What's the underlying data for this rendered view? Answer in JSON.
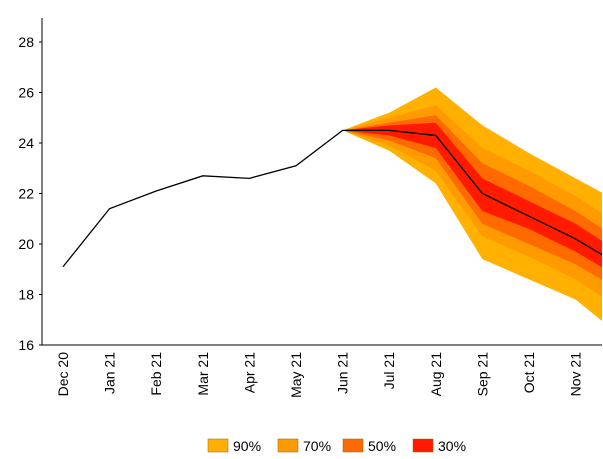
{
  "chart_data": {
    "type": "fan",
    "categories": [
      "Dec 20",
      "Jan 21",
      "Feb 21",
      "Mar 21",
      "Apr 21",
      "May 21",
      "Jun 21",
      "Jul 21",
      "Aug 21",
      "Sep 21",
      "Oct 21",
      "Nov 21",
      null
    ],
    "line": {
      "color": "#000000",
      "values": [
        19.1,
        21.4,
        22.1,
        22.7,
        22.6,
        23.1,
        24.5,
        24.5,
        24.3,
        22.0,
        21.1,
        20.2,
        19.1
      ]
    },
    "bands": [
      {
        "name": "90%",
        "color": "#ffb000",
        "upper": [
          null,
          null,
          null,
          null,
          null,
          null,
          24.5,
          25.2,
          26.2,
          24.7,
          23.6,
          22.6,
          21.6
        ],
        "lower": [
          null,
          null,
          null,
          null,
          null,
          null,
          24.5,
          23.7,
          22.4,
          19.4,
          18.6,
          17.8,
          16.3
        ]
      },
      {
        "name": "70%",
        "color": "#ff9a00",
        "upper": [
          null,
          null,
          null,
          null,
          null,
          null,
          24.5,
          25.0,
          25.5,
          23.8,
          22.9,
          21.9,
          20.7
        ],
        "lower": [
          null,
          null,
          null,
          null,
          null,
          null,
          24.5,
          23.9,
          22.9,
          20.3,
          19.5,
          18.6,
          17.4
        ]
      },
      {
        "name": "50%",
        "color": "#ff6a00",
        "upper": [
          null,
          null,
          null,
          null,
          null,
          null,
          24.5,
          24.8,
          25.1,
          23.2,
          22.3,
          21.3,
          20.1
        ],
        "lower": [
          null,
          null,
          null,
          null,
          null,
          null,
          24.5,
          24.1,
          23.4,
          20.8,
          20.0,
          19.2,
          18.1
        ]
      },
      {
        "name": "30%",
        "color": "#ff1a00",
        "upper": [
          null,
          null,
          null,
          null,
          null,
          null,
          24.5,
          24.7,
          24.8,
          22.6,
          21.7,
          20.8,
          19.6
        ],
        "lower": [
          null,
          null,
          null,
          null,
          null,
          null,
          24.5,
          24.3,
          23.8,
          21.3,
          20.6,
          19.7,
          18.6
        ]
      }
    ],
    "ylim": [
      16,
      28
    ],
    "yticks": [
      16,
      18,
      20,
      22,
      24,
      26,
      28
    ],
    "grid": false,
    "legend": "bottom"
  }
}
